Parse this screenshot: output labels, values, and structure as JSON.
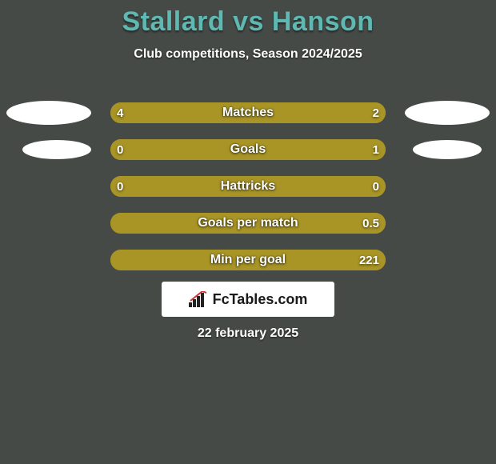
{
  "background_color": "#454a46",
  "title": "Stallard vs Hanson",
  "title_color": "#5fb9b3",
  "subtitle": "Club competitions, Season 2024/2025",
  "subtitle_color": "#ffffff",
  "left_color": "#a99525",
  "right_color": "#a99525",
  "bar_track_color": "#a99525",
  "stat_label_color": "#ffffff",
  "value_text_color": "#ffffff",
  "rows": [
    {
      "label": "Matches",
      "left_value": "4",
      "right_value": "2",
      "left_pct": 66.7,
      "right_pct": 33.3,
      "show_left_avatar": "large",
      "show_right_avatar": "large"
    },
    {
      "label": "Goals",
      "left_value": "0",
      "right_value": "1",
      "left_pct": 18,
      "right_pct": 82,
      "show_left_avatar": "small",
      "show_right_avatar": "small"
    },
    {
      "label": "Hattricks",
      "left_value": "0",
      "right_value": "0",
      "left_pct": 100,
      "right_pct": 0,
      "show_left_avatar": "none",
      "show_right_avatar": "none"
    },
    {
      "label": "Goals per match",
      "left_value": "",
      "right_value": "0.5",
      "left_pct": 100,
      "right_pct": 0,
      "show_left_avatar": "none",
      "show_right_avatar": "none"
    },
    {
      "label": "Min per goal",
      "left_value": "",
      "right_value": "221",
      "left_pct": 100,
      "right_pct": 0,
      "show_left_avatar": "none",
      "show_right_avatar": "none"
    }
  ],
  "logo_text": "FcTables.com",
  "date_text": "22 february 2025"
}
